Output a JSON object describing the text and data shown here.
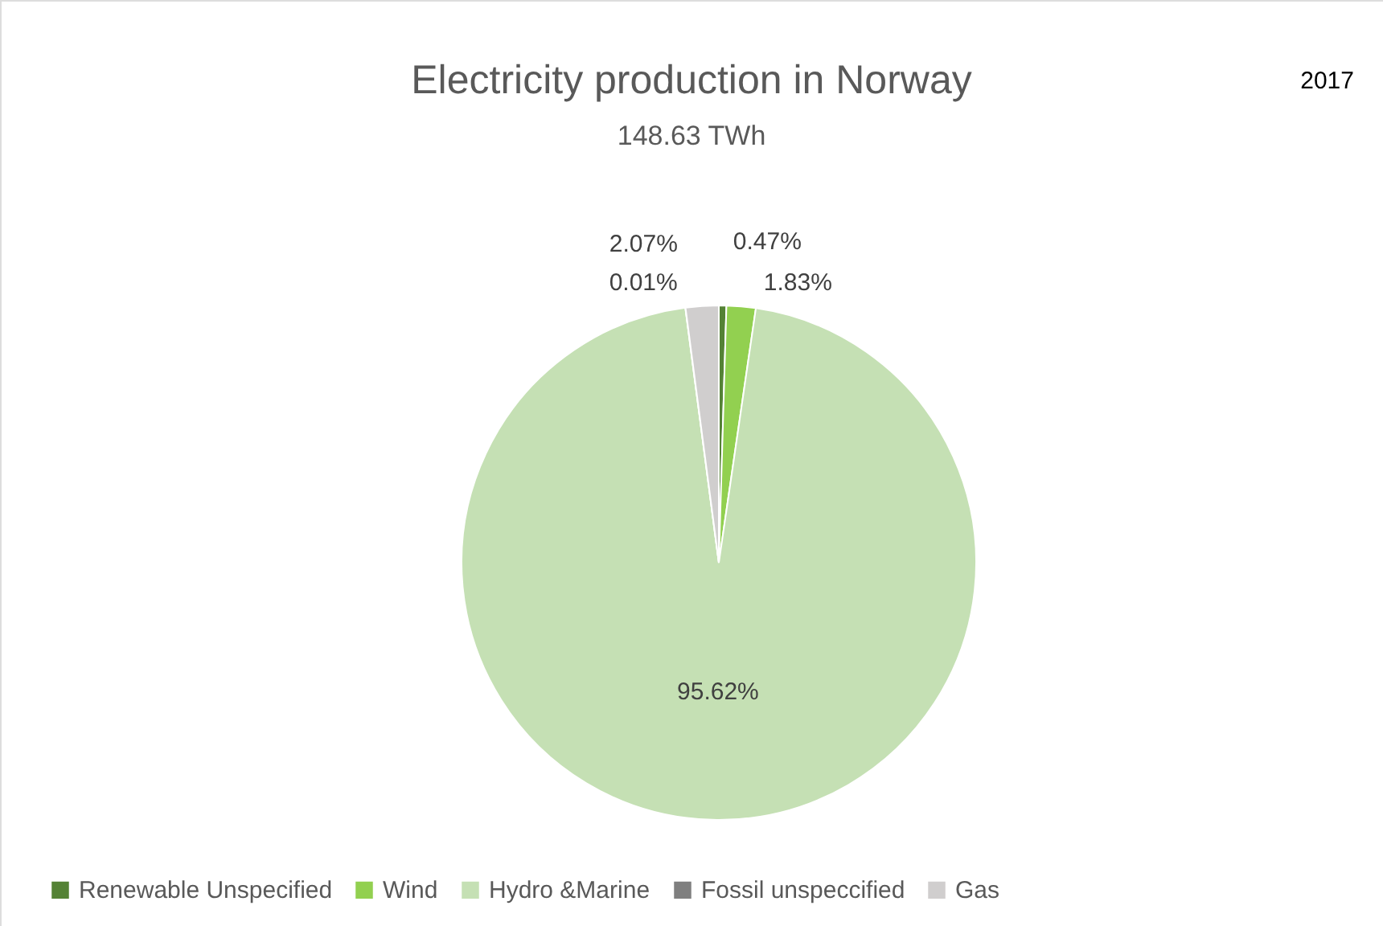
{
  "chart_data": {
    "type": "pie",
    "title": "Electricity production in Norway",
    "subtitle": "148.63 TWh",
    "annotations": [
      "2017"
    ],
    "categories": [
      "Renewable Unspecified",
      "Wind",
      "Hydro &Marine",
      "Fossil unspeccified",
      "Gas"
    ],
    "values": [
      0.47,
      1.83,
      95.62,
      0.01,
      2.07
    ],
    "value_labels": [
      "0.47%",
      "1.83%",
      "95.62%",
      "0.01%",
      "2.07%"
    ],
    "colors": [
      "#548235",
      "#92d050",
      "#c5e0b4",
      "#7f7f7f",
      "#d0cece"
    ],
    "legend": "bottom"
  }
}
